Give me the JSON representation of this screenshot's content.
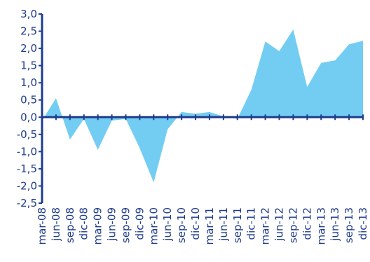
{
  "chart_data": {
    "type": "area",
    "title": "",
    "xlabel": "",
    "ylabel": "",
    "ylim": [
      -2.5,
      3.0
    ],
    "y_ticks": [
      "3,0",
      "2,5",
      "2,0",
      "1,5",
      "1,0",
      "0,5",
      "0,0",
      "-0,5",
      "-1,0",
      "-1,5",
      "-2,0",
      "-2,5"
    ],
    "y_tick_values": [
      3.0,
      2.5,
      2.0,
      1.5,
      1.0,
      0.5,
      0.0,
      -0.5,
      -1.0,
      -1.5,
      -2.0,
      -2.5
    ],
    "x_tick_labels": [
      "mar-08",
      "jun-08",
      "sep-08",
      "dic-08",
      "mar-09",
      "jun-09",
      "sep-09",
      "dic-09",
      "mar-10",
      "jun-10",
      "sep-10",
      "dic-10",
      "mar-11",
      "jun-11",
      "sep-11",
      "dic-11",
      "mar-12",
      "jun-12",
      "sep-12",
      "dic-12",
      "mar-13",
      "jun-13",
      "sep-13",
      "dic-13"
    ],
    "x": [
      "mar-08",
      "jun-08",
      "sep-08",
      "dic-08",
      "mar-09",
      "jun-09",
      "sep-09",
      "dic-09",
      "mar-10",
      "jun-10",
      "sep-10",
      "dic-10",
      "mar-11",
      "jun-11",
      "sep-11",
      "dic-11",
      "mar-12",
      "jun-12",
      "sep-12",
      "dic-12",
      "mar-13",
      "jun-13",
      "sep-13",
      "dic-13"
    ],
    "values": [
      -0.1,
      0.55,
      -0.65,
      -0.05,
      -0.95,
      -0.1,
      -0.05,
      -0.9,
      -1.9,
      -0.35,
      0.15,
      0.1,
      0.15,
      0.02,
      -0.05,
      0.8,
      2.2,
      1.92,
      2.55,
      0.88,
      1.58,
      1.65,
      2.12,
      2.22
    ],
    "grid": false,
    "legend": "none",
    "colors": {
      "fill": "#73cdf2",
      "axis": "#1f3c8c",
      "text": "#1f3c8c"
    }
  }
}
